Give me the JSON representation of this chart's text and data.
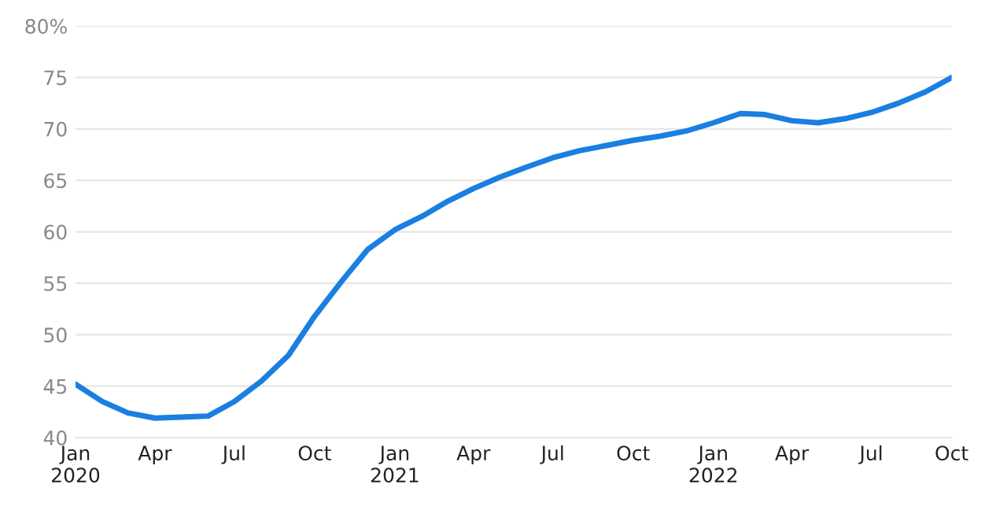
{
  "chart_data": {
    "type": "line",
    "x": [
      "2020-01",
      "2020-02",
      "2020-03",
      "2020-04",
      "2020-05",
      "2020-06",
      "2020-07",
      "2020-08",
      "2020-09",
      "2020-10",
      "2020-11",
      "2020-12",
      "2021-01",
      "2021-02",
      "2021-03",
      "2021-04",
      "2021-05",
      "2021-06",
      "2021-07",
      "2021-08",
      "2021-09",
      "2021-10",
      "2021-11",
      "2021-12",
      "2022-01",
      "2022-02",
      "2022-03",
      "2022-04",
      "2022-05",
      "2022-06",
      "2022-07",
      "2022-08",
      "2022-09",
      "2022-10"
    ],
    "series": [
      {
        "color": "#1a7fe0",
        "values": [
          45.2,
          43.5,
          42.4,
          41.9,
          42.0,
          42.1,
          43.5,
          45.5,
          48.0,
          51.8,
          55.2,
          58.3,
          60.2,
          61.5,
          62.9,
          64.2,
          65.3,
          66.3,
          67.2,
          67.9,
          68.4,
          68.9,
          69.3,
          69.8,
          70.6,
          71.5,
          71.4,
          70.8,
          70.6,
          71.0,
          71.6,
          72.5,
          73.6,
          75.0
        ]
      }
    ],
    "xlim": [
      "2020-01",
      "2022-10"
    ],
    "xticks": [
      {
        "value": "2020-01",
        "label": "Jan\n2020"
      },
      {
        "value": "2020-04",
        "label": "Apr"
      },
      {
        "value": "2020-07",
        "label": "Jul"
      },
      {
        "value": "2020-10",
        "label": "Oct"
      },
      {
        "value": "2021-01",
        "label": "Jan\n2021"
      },
      {
        "value": "2021-04",
        "label": "Apr"
      },
      {
        "value": "2021-07",
        "label": "Jul"
      },
      {
        "value": "2021-10",
        "label": "Oct"
      },
      {
        "value": "2022-01",
        "label": "Jan\n2022"
      },
      {
        "value": "2022-04",
        "label": "Apr"
      },
      {
        "value": "2022-07",
        "label": "Jul"
      },
      {
        "value": "2022-10",
        "label": "Oct"
      }
    ],
    "ylim": [
      40,
      80
    ],
    "yticks": [
      40,
      45,
      50,
      55,
      60,
      65,
      70,
      75,
      {
        "value": 80,
        "label": "80%"
      }
    ],
    "grid": "y",
    "legend": false,
    "marker": "none",
    "line_style": "solid"
  }
}
